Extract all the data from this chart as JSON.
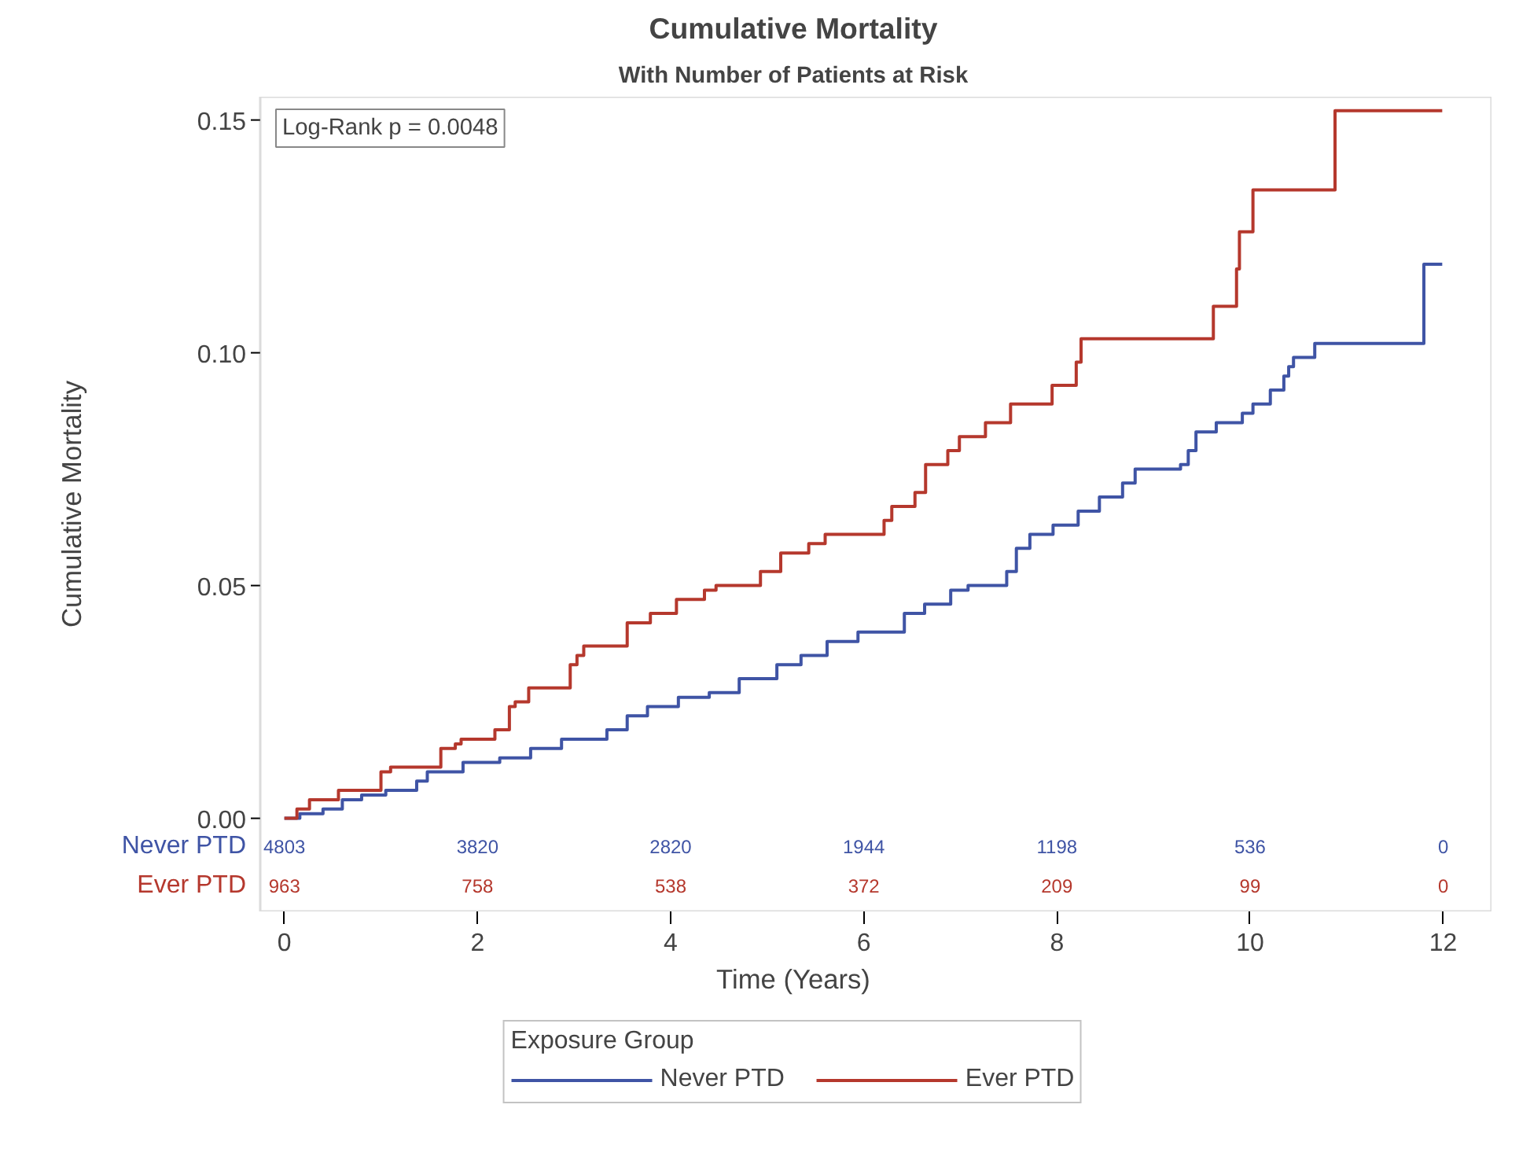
{
  "chart_data": {
    "type": "step",
    "title": "Cumulative Mortality",
    "subtitle": "With Number of Patients at Risk",
    "xlabel": "Time (Years)",
    "ylabel": "Cumulative Mortality",
    "legend_title": "Exposure Group",
    "legend": "bottom",
    "grid": false,
    "xlim": [
      -0.25,
      12.5
    ],
    "ylim": [
      -0.02,
      0.155
    ],
    "xticks": [
      0,
      2,
      4,
      6,
      8,
      10,
      12
    ],
    "yticks": [
      {
        "value": 0,
        "label": "0.00"
      },
      {
        "value": 0.05,
        "label": "0.05"
      },
      {
        "value": 0.1,
        "label": "0.10"
      },
      {
        "value": 0.15,
        "label": "0.15"
      }
    ],
    "series": [
      {
        "name": "Never PTD",
        "color": "#3f54a5",
        "x": [
          0,
          0.16,
          0.4,
          0.6,
          0.8,
          1.05,
          1.37,
          1.48,
          1.85,
          2.23,
          2.55,
          2.87,
          3.34,
          3.55,
          3.76,
          4.08,
          4.4,
          4.71,
          5.1,
          5.35,
          5.62,
          5.94,
          6.42,
          6.63,
          6.9,
          7.08,
          7.48,
          7.58,
          7.72,
          7.96,
          8.22,
          8.44,
          8.68,
          8.81,
          9.28,
          9.36,
          9.44,
          9.65,
          9.92,
          10.03,
          10.21,
          10.35,
          10.4,
          10.45,
          10.67,
          11.8,
          11.99
        ],
        "values": [
          0,
          0.001,
          0.002,
          0.004,
          0.005,
          0.006,
          0.008,
          0.01,
          0.012,
          0.013,
          0.015,
          0.017,
          0.019,
          0.022,
          0.024,
          0.026,
          0.027,
          0.03,
          0.033,
          0.035,
          0.038,
          0.04,
          0.044,
          0.046,
          0.049,
          0.05,
          0.053,
          0.058,
          0.061,
          0.063,
          0.066,
          0.069,
          0.072,
          0.075,
          0.076,
          0.079,
          0.083,
          0.085,
          0.087,
          0.089,
          0.092,
          0.095,
          0.097,
          0.099,
          0.102,
          0.119,
          0.119
        ]
      },
      {
        "name": "Ever PTD",
        "color": "#b5382d",
        "x": [
          0,
          0.13,
          0.26,
          0.56,
          1.0,
          1.1,
          1.62,
          1.77,
          1.83,
          2.18,
          2.33,
          2.39,
          2.53,
          2.96,
          3.03,
          3.1,
          3.55,
          3.79,
          4.06,
          4.35,
          4.47,
          4.93,
          5.14,
          5.43,
          5.6,
          6.21,
          6.29,
          6.53,
          6.64,
          6.87,
          6.99,
          7.26,
          7.52,
          7.95,
          8.2,
          8.25,
          9.62,
          9.86,
          9.89,
          10.03,
          10.88,
          11.99
        ],
        "values": [
          0,
          0.002,
          0.004,
          0.006,
          0.01,
          0.011,
          0.015,
          0.016,
          0.017,
          0.019,
          0.024,
          0.025,
          0.028,
          0.033,
          0.035,
          0.037,
          0.042,
          0.044,
          0.047,
          0.049,
          0.05,
          0.053,
          0.057,
          0.059,
          0.061,
          0.064,
          0.067,
          0.07,
          0.076,
          0.079,
          0.082,
          0.085,
          0.089,
          0.093,
          0.098,
          0.103,
          0.11,
          0.118,
          0.126,
          0.135,
          0.152,
          0.152
        ]
      }
    ],
    "annotations": [
      "Log-Rank p = 0.0048",
      "4803",
      "3820",
      "2820",
      "1944",
      "1198",
      "536",
      "0",
      "963",
      "758",
      "538",
      "372",
      "209",
      "99",
      "0"
    ]
  }
}
